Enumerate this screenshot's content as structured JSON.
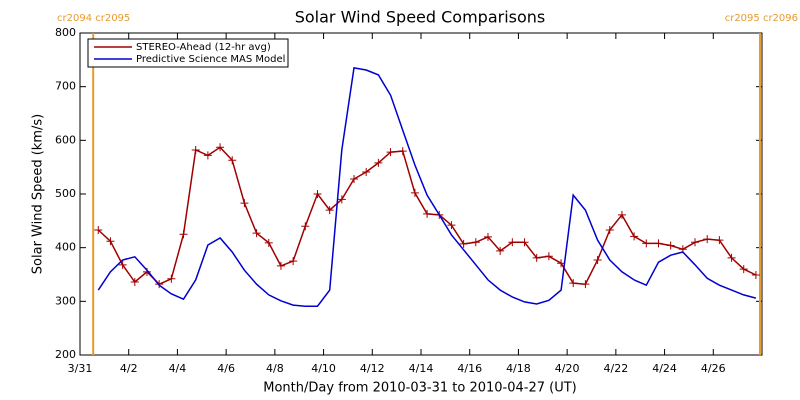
{
  "chart_data": {
    "type": "line",
    "title": "Solar Wind Speed Comparisons",
    "xlabel": "Month/Day from 2010-03-31 to 2010-04-27 (UT)",
    "ylabel": "Solar Wind Speed (km/s)",
    "xlim": [
      "2010-03-31T00:00",
      "2010-04-28T00:00"
    ],
    "xticks": [
      {
        "value": "2010-03-31T00:00",
        "label": "3/31"
      },
      {
        "value": "2010-04-02T00:00",
        "label": "4/2"
      },
      {
        "value": "2010-04-04T00:00",
        "label": "4/4"
      },
      {
        "value": "2010-04-06T00:00",
        "label": "4/6"
      },
      {
        "value": "2010-04-08T00:00",
        "label": "4/8"
      },
      {
        "value": "2010-04-10T00:00",
        "label": "4/10"
      },
      {
        "value": "2010-04-12T00:00",
        "label": "4/12"
      },
      {
        "value": "2010-04-14T00:00",
        "label": "4/14"
      },
      {
        "value": "2010-04-16T00:00",
        "label": "4/16"
      },
      {
        "value": "2010-04-18T00:00",
        "label": "4/18"
      },
      {
        "value": "2010-04-20T00:00",
        "label": "4/20"
      },
      {
        "value": "2010-04-22T00:00",
        "label": "4/22"
      },
      {
        "value": "2010-04-24T00:00",
        "label": "4/24"
      },
      {
        "value": "2010-04-26T00:00",
        "label": "4/26"
      }
    ],
    "ylim": [
      200,
      800
    ],
    "yticks": [
      200,
      300,
      400,
      500,
      600,
      700,
      800
    ],
    "legend": "upper left",
    "annotations": [
      {
        "x": "2010-03-31T13:00",
        "label": "cr2094 cr2095",
        "color": "#e69b2e"
      },
      {
        "x": "2010-04-27T22:00",
        "label": "cr2095 cr2096",
        "color": "#e69b2e"
      }
    ],
    "x": [
      "2010-03-31T18:00",
      "2010-04-01T06:00",
      "2010-04-01T18:00",
      "2010-04-02T06:00",
      "2010-04-02T18:00",
      "2010-04-03T06:00",
      "2010-04-03T18:00",
      "2010-04-04T06:00",
      "2010-04-04T18:00",
      "2010-04-05T06:00",
      "2010-04-05T18:00",
      "2010-04-06T06:00",
      "2010-04-06T18:00",
      "2010-04-07T06:00",
      "2010-04-07T18:00",
      "2010-04-08T06:00",
      "2010-04-08T18:00",
      "2010-04-09T06:00",
      "2010-04-09T18:00",
      "2010-04-10T06:00",
      "2010-04-10T18:00",
      "2010-04-11T06:00",
      "2010-04-11T18:00",
      "2010-04-12T06:00",
      "2010-04-12T18:00",
      "2010-04-13T06:00",
      "2010-04-13T18:00",
      "2010-04-14T06:00",
      "2010-04-14T18:00",
      "2010-04-15T06:00",
      "2010-04-15T18:00",
      "2010-04-16T06:00",
      "2010-04-16T18:00",
      "2010-04-17T06:00",
      "2010-04-17T18:00",
      "2010-04-18T06:00",
      "2010-04-18T18:00",
      "2010-04-19T06:00",
      "2010-04-19T18:00",
      "2010-04-20T06:00",
      "2010-04-20T18:00",
      "2010-04-21T06:00",
      "2010-04-21T18:00",
      "2010-04-22T06:00",
      "2010-04-22T18:00",
      "2010-04-23T06:00",
      "2010-04-23T18:00",
      "2010-04-24T06:00",
      "2010-04-24T18:00",
      "2010-04-25T06:00",
      "2010-04-25T18:00",
      "2010-04-26T06:00",
      "2010-04-26T18:00",
      "2010-04-27T06:00",
      "2010-04-27T18:00"
    ],
    "series": [
      {
        "name": "STEREO-Ahead (12-hr avg)",
        "color": "#a00000",
        "markers": true,
        "values": [
          433,
          412,
          368,
          336,
          355,
          332,
          342,
          425,
          582,
          572,
          587,
          563,
          483,
          427,
          409,
          366,
          375,
          440,
          500,
          470,
          490,
          528,
          541,
          558,
          578,
          580,
          502,
          463,
          461,
          442,
          407,
          410,
          420,
          394,
          410,
          410,
          381,
          384,
          371,
          334,
          332,
          377,
          433,
          461,
          421,
          408,
          408,
          404,
          397,
          410,
          416,
          414,
          381,
          360,
          349
        ]
      },
      {
        "name": "Predictive Science MAS Model",
        "color": "#0000d0",
        "markers": false,
        "values": [
          321,
          355,
          377,
          383,
          358,
          330,
          314,
          304,
          340,
          405,
          418,
          392,
          358,
          332,
          312,
          301,
          293,
          291,
          291,
          321,
          582,
          735,
          731,
          722,
          684,
          619,
          554,
          498,
          461,
          424,
          396,
          368,
          340,
          321,
          308,
          299,
          295,
          302,
          321,
          498,
          470,
          414,
          377,
          355,
          340,
          330,
          373,
          386,
          392,
          368,
          343,
          330,
          321,
          312,
          306
        ]
      }
    ]
  }
}
